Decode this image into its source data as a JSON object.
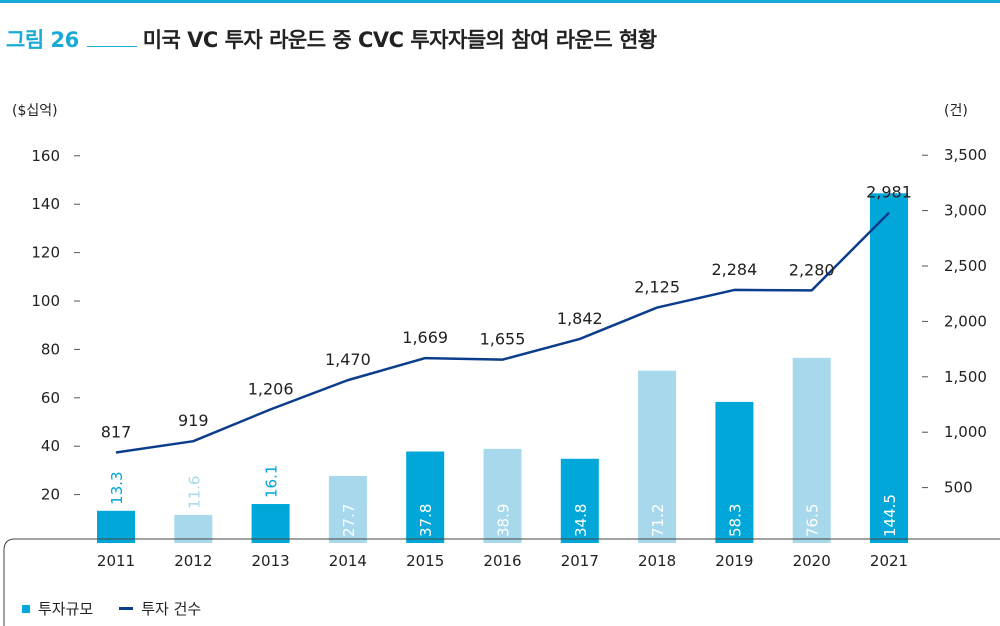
{
  "figure": {
    "label": "그림 26",
    "title": "미국 VC 투자 라운드 중 CVC 투자자들의 참여 라운드 현황"
  },
  "colors": {
    "accent": "#1aaad6",
    "bar_dark": "#00a7d8",
    "bar_light": "#a8d8ec",
    "line": "#0c3d8c"
  },
  "legend": {
    "bar_label": "투자규모",
    "line_label": "투자 건수"
  },
  "chart_data": {
    "type": "bar",
    "categories": [
      "2011",
      "2012",
      "2013",
      "2014",
      "2015",
      "2016",
      "2017",
      "2018",
      "2019",
      "2020",
      "2021"
    ],
    "series": [
      {
        "name": "투자규모",
        "type": "bar",
        "axis": "left",
        "values": [
          13.3,
          11.6,
          16.1,
          27.7,
          37.8,
          38.9,
          34.8,
          71.2,
          58.3,
          76.5,
          144.5
        ],
        "labels": [
          "13.3",
          "11.6",
          "16.1",
          "27.7",
          "37.8",
          "38.9",
          "34.8",
          "71.2",
          "58.3",
          "76.5",
          "144.5"
        ],
        "shade": [
          "dark",
          "light",
          "dark",
          "light",
          "dark",
          "light",
          "dark",
          "light",
          "dark",
          "light",
          "dark"
        ]
      },
      {
        "name": "투자 건수",
        "type": "line",
        "axis": "right",
        "values": [
          817,
          919,
          1206,
          1470,
          1669,
          1655,
          1842,
          2125,
          2284,
          2280,
          2981
        ],
        "labels": [
          "817",
          "919",
          "1,206",
          "1,470",
          "1,669",
          "1,655",
          "1,842",
          "2,125",
          "2,284",
          "2,280",
          "2,981"
        ]
      }
    ],
    "y_left": {
      "label": "($십억)",
      "range": [
        0,
        165
      ],
      "ticks": [
        20,
        40,
        60,
        80,
        100,
        120,
        140,
        160
      ],
      "tick_labels": [
        "20",
        "40",
        "60",
        "80",
        "100",
        "120",
        "140",
        "160"
      ]
    },
    "y_right": {
      "label": "(건)",
      "range": [
        0,
        3750
      ],
      "ticks": [
        500,
        1000,
        1500,
        2000,
        2500,
        3000,
        3500
      ],
      "tick_labels": [
        "500",
        "1,000",
        "1,500",
        "2,000",
        "2,500",
        "3,000",
        "3,500"
      ]
    },
    "grid": false,
    "legend_position": "bottom-left"
  }
}
